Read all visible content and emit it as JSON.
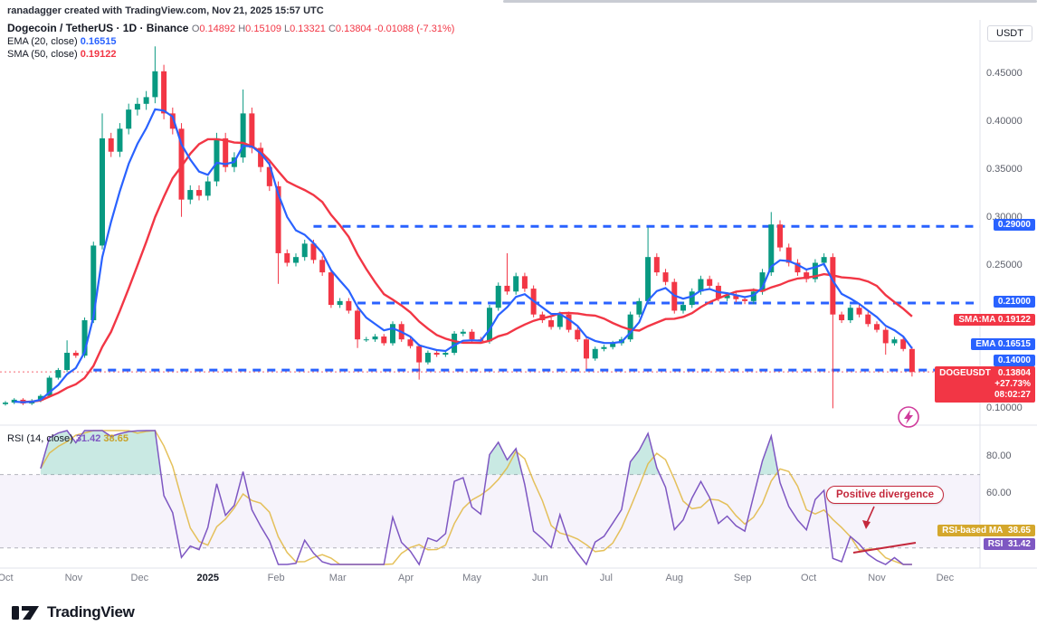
{
  "header_note": "ranadagger created with TradingView.com, Nov 21, 2025 15:57 UTC",
  "symbol_row": {
    "title": "Dogecoin / TetherUS · 1D · Binance",
    "ohlc": [
      {
        "label": "O",
        "value": "0.14892"
      },
      {
        "label": "H",
        "value": "0.15109"
      },
      {
        "label": "L",
        "value": "0.13321"
      },
      {
        "label": "C",
        "value": "0.13804"
      }
    ],
    "change": "-0.01088 (-7.31%)"
  },
  "indicators": [
    {
      "name": "EMA (20, close)",
      "value": "0.16515",
      "color": "#2962ff"
    },
    {
      "name": "SMA (50, close)",
      "value": "0.19122",
      "color": "#f23645"
    }
  ],
  "rsi_legend": {
    "title": "RSI (14, close)",
    "rsi_value": "31.42",
    "ma_value": "38.65"
  },
  "axis": {
    "currency_label": "USDT",
    "price_ticks": [
      {
        "text": "0.45000",
        "value": 0.45
      },
      {
        "text": "0.40000",
        "value": 0.4
      },
      {
        "text": "0.35000",
        "value": 0.35
      },
      {
        "text": "0.30000",
        "value": 0.3
      },
      {
        "text": "0.25000",
        "value": 0.25
      },
      {
        "text": "0.10000",
        "value": 0.1
      }
    ],
    "level_badges": [
      {
        "text": "0.29000",
        "price": 0.29,
        "dy": 0
      },
      {
        "text": "0.21000",
        "price": 0.21,
        "dy": 0
      },
      {
        "text": "0.14000",
        "price": 0.14,
        "dy": -9
      }
    ],
    "sma_badge": {
      "text": "SMA:MA  0.19122",
      "price": 0.19122
    },
    "ema_badge": {
      "text": "EMA  0.16515",
      "price": 0.16515
    },
    "last_badge": {
      "symbol": "DOGEUSDT",
      "price_text": "0.13804",
      "change_text": "+27.73%",
      "countdown": "08:02:27",
      "price": 0.13804
    },
    "rsi_ticks": [
      {
        "text": "80.00",
        "value": 80
      },
      {
        "text": "60.00",
        "value": 60
      }
    ],
    "rsi_ma_badge": {
      "label": "RSI-based MA",
      "value_text": "38.65",
      "value": 38.65
    },
    "rsi_badge": {
      "label": "RSI",
      "value_text": "31.42",
      "value": 31.42
    }
  },
  "x_labels": [
    {
      "text": "Oct",
      "idx": 0
    },
    {
      "text": "Nov",
      "idx": 7.75
    },
    {
      "text": "Dec",
      "idx": 15.25
    },
    {
      "text": "2025",
      "idx": 23,
      "bold": true
    },
    {
      "text": "Feb",
      "idx": 30.75
    },
    {
      "text": "Mar",
      "idx": 37.75
    },
    {
      "text": "Apr",
      "idx": 45.5
    },
    {
      "text": "May",
      "idx": 53
    },
    {
      "text": "Jun",
      "idx": 60.75
    },
    {
      "text": "Jul",
      "idx": 68.25
    },
    {
      "text": "Aug",
      "idx": 76
    },
    {
      "text": "Sep",
      "idx": 83.75
    },
    {
      "text": "Oct",
      "idx": 91.25
    },
    {
      "text": "Nov",
      "idx": 99
    },
    {
      "text": "Dec",
      "idx": 106.75
    }
  ],
  "annotation": {
    "text": "Positive divergence"
  },
  "footer": {
    "brand": "TradingView"
  },
  "chart_data": {
    "type": "candlestick",
    "title": "Dogecoin / TetherUS · 1D · Binance",
    "y_axis": "USDT",
    "x_range": [
      "Oct 2024",
      "Dec 2025"
    ],
    "ylim": [
      0.09,
      0.5
    ],
    "sample_interval_days": 4,
    "open_rule": "previous_close",
    "closes": [
      0.106,
      0.109,
      0.105,
      0.108,
      0.113,
      0.132,
      0.14,
      0.158,
      0.155,
      0.192,
      0.27,
      0.382,
      0.368,
      0.392,
      0.412,
      0.418,
      0.425,
      0.452,
      0.408,
      0.392,
      0.318,
      0.328,
      0.322,
      0.337,
      0.382,
      0.352,
      0.362,
      0.408,
      0.372,
      0.352,
      0.332,
      0.262,
      0.252,
      0.258,
      0.272,
      0.255,
      0.242,
      0.208,
      0.212,
      0.202,
      0.172,
      0.172,
      0.175,
      0.168,
      0.188,
      0.172,
      0.165,
      0.148,
      0.158,
      0.156,
      0.158,
      0.178,
      0.18,
      0.172,
      0.17,
      0.205,
      0.228,
      0.222,
      0.238,
      0.225,
      0.198,
      0.192,
      0.185,
      0.198,
      0.182,
      0.172,
      0.152,
      0.162,
      0.164,
      0.168,
      0.172,
      0.198,
      0.212,
      0.258,
      0.242,
      0.232,
      0.202,
      0.208,
      0.222,
      0.235,
      0.228,
      0.215,
      0.218,
      0.214,
      0.212,
      0.222,
      0.242,
      0.292,
      0.268,
      0.252,
      0.242,
      0.235,
      0.252,
      0.258,
      0.198,
      0.192,
      0.205,
      0.198,
      0.188,
      0.182,
      0.168,
      0.172,
      0.162,
      0.138
    ],
    "wick_overrides": {
      "7": {
        "high": 0.171
      },
      "11": {
        "high": 0.408
      },
      "17": {
        "high": 0.478
      },
      "20": {
        "low": 0.3
      },
      "27": {
        "high": 0.433
      },
      "31": {
        "low": 0.23
      },
      "40": {
        "low": 0.163
      },
      "47": {
        "low": 0.13
      },
      "57": {
        "high": 0.262
      },
      "66": {
        "low": 0.141
      },
      "73": {
        "high": 0.289
      },
      "87": {
        "high": 0.305
      },
      "94": {
        "low": 0.1
      },
      "100": {
        "low": 0.156
      },
      "103": {
        "low": 0.1332
      }
    },
    "overlays": [
      {
        "name": "EMA",
        "period": 20,
        "color": "#2962ff",
        "last": 0.16515
      },
      {
        "name": "SMA",
        "period": 50,
        "color": "#f23645",
        "last": 0.19122
      }
    ],
    "levels": [
      {
        "price": 0.29,
        "start_idx": 35
      },
      {
        "price": 0.21,
        "start_idx": 40
      },
      {
        "price": 0.14,
        "start_idx": 10
      }
    ],
    "last_price": 0.13804,
    "colors": {
      "up": "#089981",
      "down": "#f23645",
      "level": "#2962ff",
      "rsi": "#7e57c2",
      "rsi_ma": "#e0b63e",
      "band": "#7e57c2",
      "annotation": "#c4283c"
    },
    "sub_chart": {
      "type": "line",
      "name": "RSI",
      "period": 14,
      "last": 31.42,
      "ma_last": 38.65,
      "overbought": 70,
      "oversold": 30,
      "ylim": [
        20,
        95
      ],
      "ticks": [
        80,
        60
      ]
    }
  }
}
